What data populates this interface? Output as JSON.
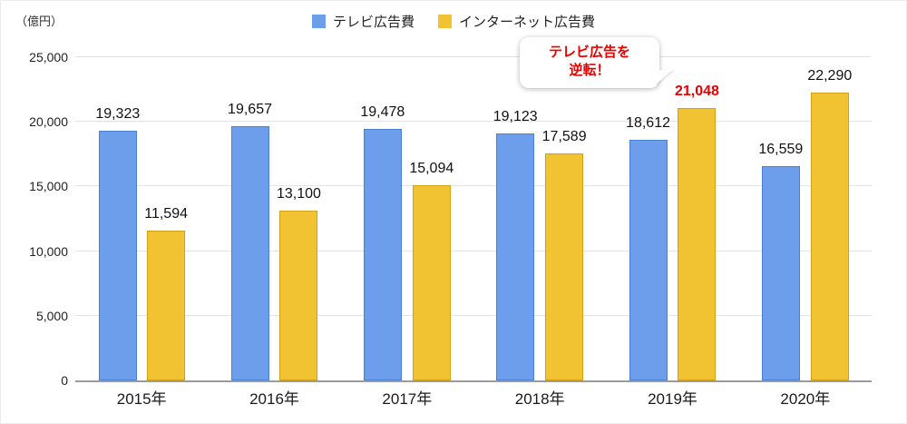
{
  "unit_label": "（億円）",
  "legend": [
    {
      "label": "テレビ広告費",
      "color": "#6d9eeb"
    },
    {
      "label": "インターネット広告費",
      "color": "#f1c232"
    }
  ],
  "annotation": {
    "line1": "テレビ広告を",
    "line2": "逆転！"
  },
  "colors": {
    "highlight_red": "#e60000",
    "gridline": "#e3e3e3",
    "axis": "#9b9b9b"
  },
  "chart_data": {
    "type": "bar",
    "categories": [
      "2015年",
      "2016年",
      "2017年",
      "2018年",
      "2019年",
      "2020年"
    ],
    "series": [
      {
        "name": "テレビ広告費",
        "color": "#6d9eeb",
        "border_color": "#4a7fd4",
        "values": [
          19323,
          19657,
          19478,
          19123,
          18612,
          16559
        ]
      },
      {
        "name": "インターネット広告費",
        "color": "#f1c232",
        "border_color": "#d2a114",
        "values": [
          11594,
          13100,
          15094,
          17589,
          21048,
          22290
        ]
      }
    ],
    "ylabel_unit": "億円",
    "ylim": [
      0,
      25000
    ],
    "yticks": [
      0,
      5000,
      10000,
      15000,
      20000,
      25000
    ],
    "legend_position": "top",
    "grid": true,
    "highlight": {
      "series": 1,
      "index": 4,
      "color": "#e60000",
      "note": "テレビ広告を逆転！"
    }
  }
}
